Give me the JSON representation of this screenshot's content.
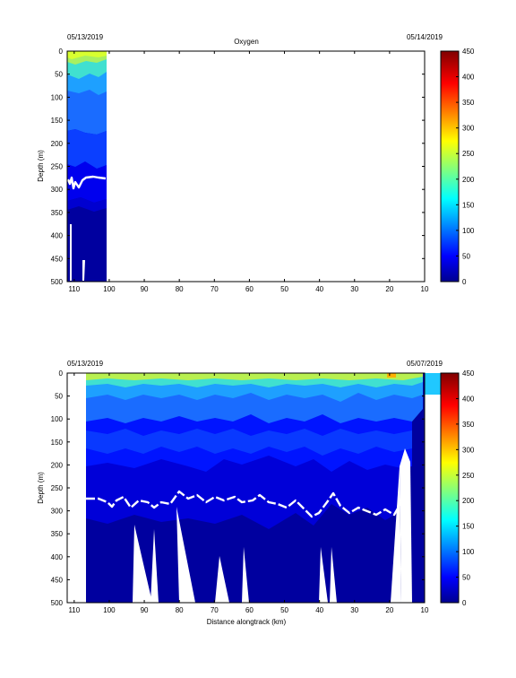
{
  "chart_data": [
    {
      "type": "heatmap",
      "title": "Oxygen",
      "date_left": "05/13/2019",
      "date_right": "05/14/2019",
      "ylabel": "Depth (m)",
      "xlabel": "",
      "x_reversed": true,
      "xlim": [
        112,
        10
      ],
      "ylim": [
        0,
        500
      ],
      "y_reversed": true,
      "x_ticks": [
        110,
        100,
        90,
        80,
        70,
        60,
        50,
        40,
        30,
        20,
        10
      ],
      "y_ticks": [
        0,
        50,
        100,
        150,
        200,
        250,
        300,
        350,
        400,
        450,
        500
      ],
      "data_extent_x": [
        112,
        100
      ],
      "isoline_color": "#ffffff",
      "isoline_depth_range": [
        270,
        300
      ],
      "colorbar": {
        "min": 0,
        "max": 450,
        "ticks": [
          0,
          50,
          100,
          150,
          200,
          250,
          300,
          350,
          400,
          450
        ],
        "colormap": "jet"
      }
    },
    {
      "type": "heatmap",
      "title": "",
      "date_left": "05/13/2019",
      "date_right": "05/07/2019",
      "ylabel": "Depth (m)",
      "xlabel": "Distance alongtrack (km)",
      "x_reversed": true,
      "xlim": [
        112,
        10
      ],
      "ylim": [
        0,
        500
      ],
      "y_reversed": true,
      "x_ticks": [
        110,
        100,
        90,
        80,
        70,
        60,
        50,
        40,
        30,
        20,
        10
      ],
      "y_ticks": [
        0,
        50,
        100,
        150,
        200,
        250,
        300,
        350,
        400,
        450,
        500
      ],
      "data_extent_x": [
        106,
        10
      ],
      "isoline_color": "#ffffff",
      "isoline_depth_range": [
        255,
        320
      ],
      "colorbar": {
        "min": 0,
        "max": 450,
        "ticks": [
          0,
          50,
          100,
          150,
          200,
          250,
          300,
          350,
          400,
          450
        ],
        "colormap": "jet"
      }
    }
  ]
}
